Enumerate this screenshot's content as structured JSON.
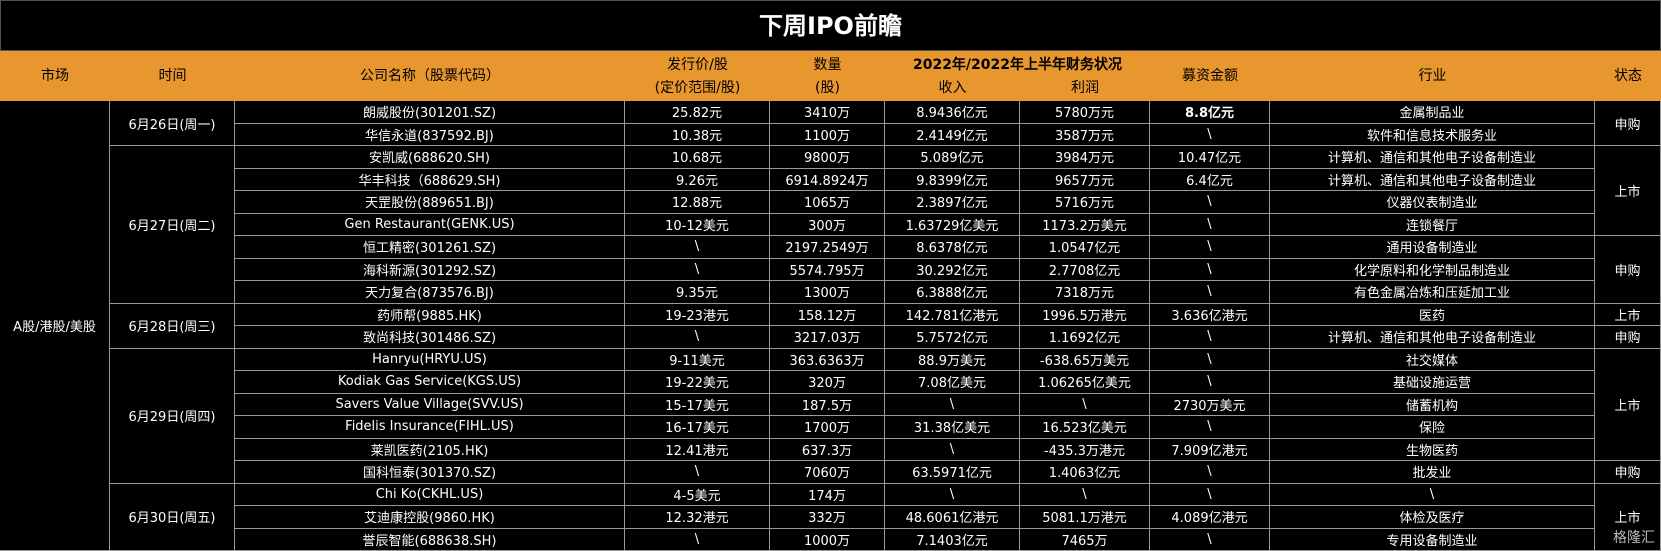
{
  "title": "下周IPO前瞻",
  "headers": {
    "market": "市场",
    "time": "时间",
    "company": "公司名称（股票代码）",
    "price_l1": "发行价/股",
    "price_l2": "(定价范围/股)",
    "qty_l1": "数量",
    "qty_l2": "(股)",
    "fin": "2022年/2022年上半年财务状况",
    "revenue": "收入",
    "profit": "利润",
    "raise": "募资金额",
    "industry": "行业",
    "status": "状态"
  },
  "market": "A股/港股/美股",
  "dates": [
    "6月26日(周一)",
    "6月27日(周二)",
    "6月28日(周三)",
    "6月29日(周四)",
    "6月30日(周五)"
  ],
  "statuses": [
    "申购",
    "上市",
    "申购",
    "上市",
    "申购",
    "上市",
    "申购",
    "上市"
  ],
  "rows": [
    {
      "company": "朗威股份(301201.SZ)",
      "price": "25.82元",
      "qty": "3410万",
      "revenue": "8.9436亿元",
      "profit": "5780万元",
      "raise": "8.8亿元",
      "industry": "金属制品业"
    },
    {
      "company": "华信永道(837592.BJ)",
      "price": "10.38元",
      "qty": "1100万",
      "revenue": "2.4149亿元",
      "profit": "3587万元",
      "raise": "\\",
      "industry": "软件和信息技术服务业"
    },
    {
      "company": "安凯威(688620.SH)",
      "price": "10.68元",
      "qty": "9800万",
      "revenue": "5.089亿元",
      "profit": "3984万元",
      "raise": "10.47亿元",
      "industry": "计算机、通信和其他电子设备制造业"
    },
    {
      "company": "华丰科技（688629.SH)",
      "price": "9.26元",
      "qty": "6914.8924万",
      "revenue": "9.8399亿元",
      "profit": "9657万元",
      "raise": "6.4亿元",
      "industry": "计算机、通信和其他电子设备制造业"
    },
    {
      "company": "天罡股份(889651.BJ)",
      "price": "12.88元",
      "qty": "1065万",
      "revenue": "2.3897亿元",
      "profit": "5716万元",
      "raise": "\\",
      "industry": "仪器仪表制造业"
    },
    {
      "company": "Gen Restaurant(GENK.US)",
      "price": "10-12美元",
      "qty": "300万",
      "revenue": "1.63729亿美元",
      "profit": "1173.2万美元",
      "raise": "\\",
      "industry": "连锁餐厅"
    },
    {
      "company": "恒工精密(301261.SZ)",
      "price": "\\",
      "qty": "2197.2549万",
      "revenue": "8.6378亿元",
      "profit": "1.0547亿元",
      "raise": "\\",
      "industry": "通用设备制造业"
    },
    {
      "company": "海科新源(301292.SZ)",
      "price": "\\",
      "qty": "5574.795万",
      "revenue": "30.292亿元",
      "profit": "2.7708亿元",
      "raise": "\\",
      "industry": "化学原料和化学制品制造业"
    },
    {
      "company": "天力复合(873576.BJ)",
      "price": "9.35元",
      "qty": "1300万",
      "revenue": "6.3888亿元",
      "profit": "7318万元",
      "raise": "\\",
      "industry": "有色金属冶炼和压延加工业"
    },
    {
      "company": "药师帮(9885.HK)",
      "price": "19-23港元",
      "qty": "158.12万",
      "revenue": "142.781亿港元",
      "profit": "1996.5万港元",
      "raise": "3.636亿港元",
      "industry": "医药"
    },
    {
      "company": "致尚科技(301486.SZ)",
      "price": "\\",
      "qty": "3217.03万",
      "revenue": "5.7572亿元",
      "profit": "1.1692亿元",
      "raise": "\\",
      "industry": "计算机、通信和其他电子设备制造业"
    },
    {
      "company": "Hanryu(HRYU.US)",
      "price": "9-11美元",
      "qty": "363.6363万",
      "revenue": "88.9万美元",
      "profit": "-638.65万美元",
      "raise": "\\",
      "industry": "社交媒体"
    },
    {
      "company": "Kodiak Gas Service(KGS.US)",
      "price": "19-22美元",
      "qty": "320万",
      "revenue": "7.08亿美元",
      "profit": "1.06265亿美元",
      "raise": "\\",
      "industry": "基础设施运营"
    },
    {
      "company": "Savers Value Village(SVV.US)",
      "price": "15-17美元",
      "qty": "187.5万",
      "revenue": "\\",
      "profit": "\\",
      "raise": "2730万美元",
      "industry": "储蓄机构"
    },
    {
      "company": "Fidelis Insurance(FIHL.US)",
      "price": "16-17美元",
      "qty": "1700万",
      "revenue": "31.38亿美元",
      "profit": "16.523亿美元",
      "raise": "\\",
      "industry": "保险"
    },
    {
      "company": "莱凯医药(2105.HK)",
      "price": "12.41港元",
      "qty": "637.3万",
      "revenue": "\\",
      "profit": "-435.3万港元",
      "raise": "7.909亿港元",
      "industry": "生物医药"
    },
    {
      "company": "国科恒泰(301370.SZ)",
      "price": "\\",
      "qty": "7060万",
      "revenue": "63.5971亿元",
      "profit": "1.4063亿元",
      "raise": "\\",
      "industry": "批发业"
    },
    {
      "company": "Chi Ko(CKHL.US)",
      "price": "4-5美元",
      "qty": "174万",
      "revenue": "\\",
      "profit": "\\",
      "raise": "\\",
      "industry": "\\"
    },
    {
      "company": "艾迪康控股(9860.HK)",
      "price": "12.32港元",
      "qty": "332万",
      "revenue": "48.6061亿港元",
      "profit": "5081.1万港元",
      "raise": "4.089亿港元",
      "industry": "体检及医疗"
    },
    {
      "company": "誉辰智能(688638.SH)",
      "price": "\\",
      "qty": "1000万",
      "revenue": "7.1403亿元",
      "profit": "7465万",
      "raise": "\\",
      "industry": "专用设备制造业"
    }
  ],
  "watermark": "格隆汇"
}
